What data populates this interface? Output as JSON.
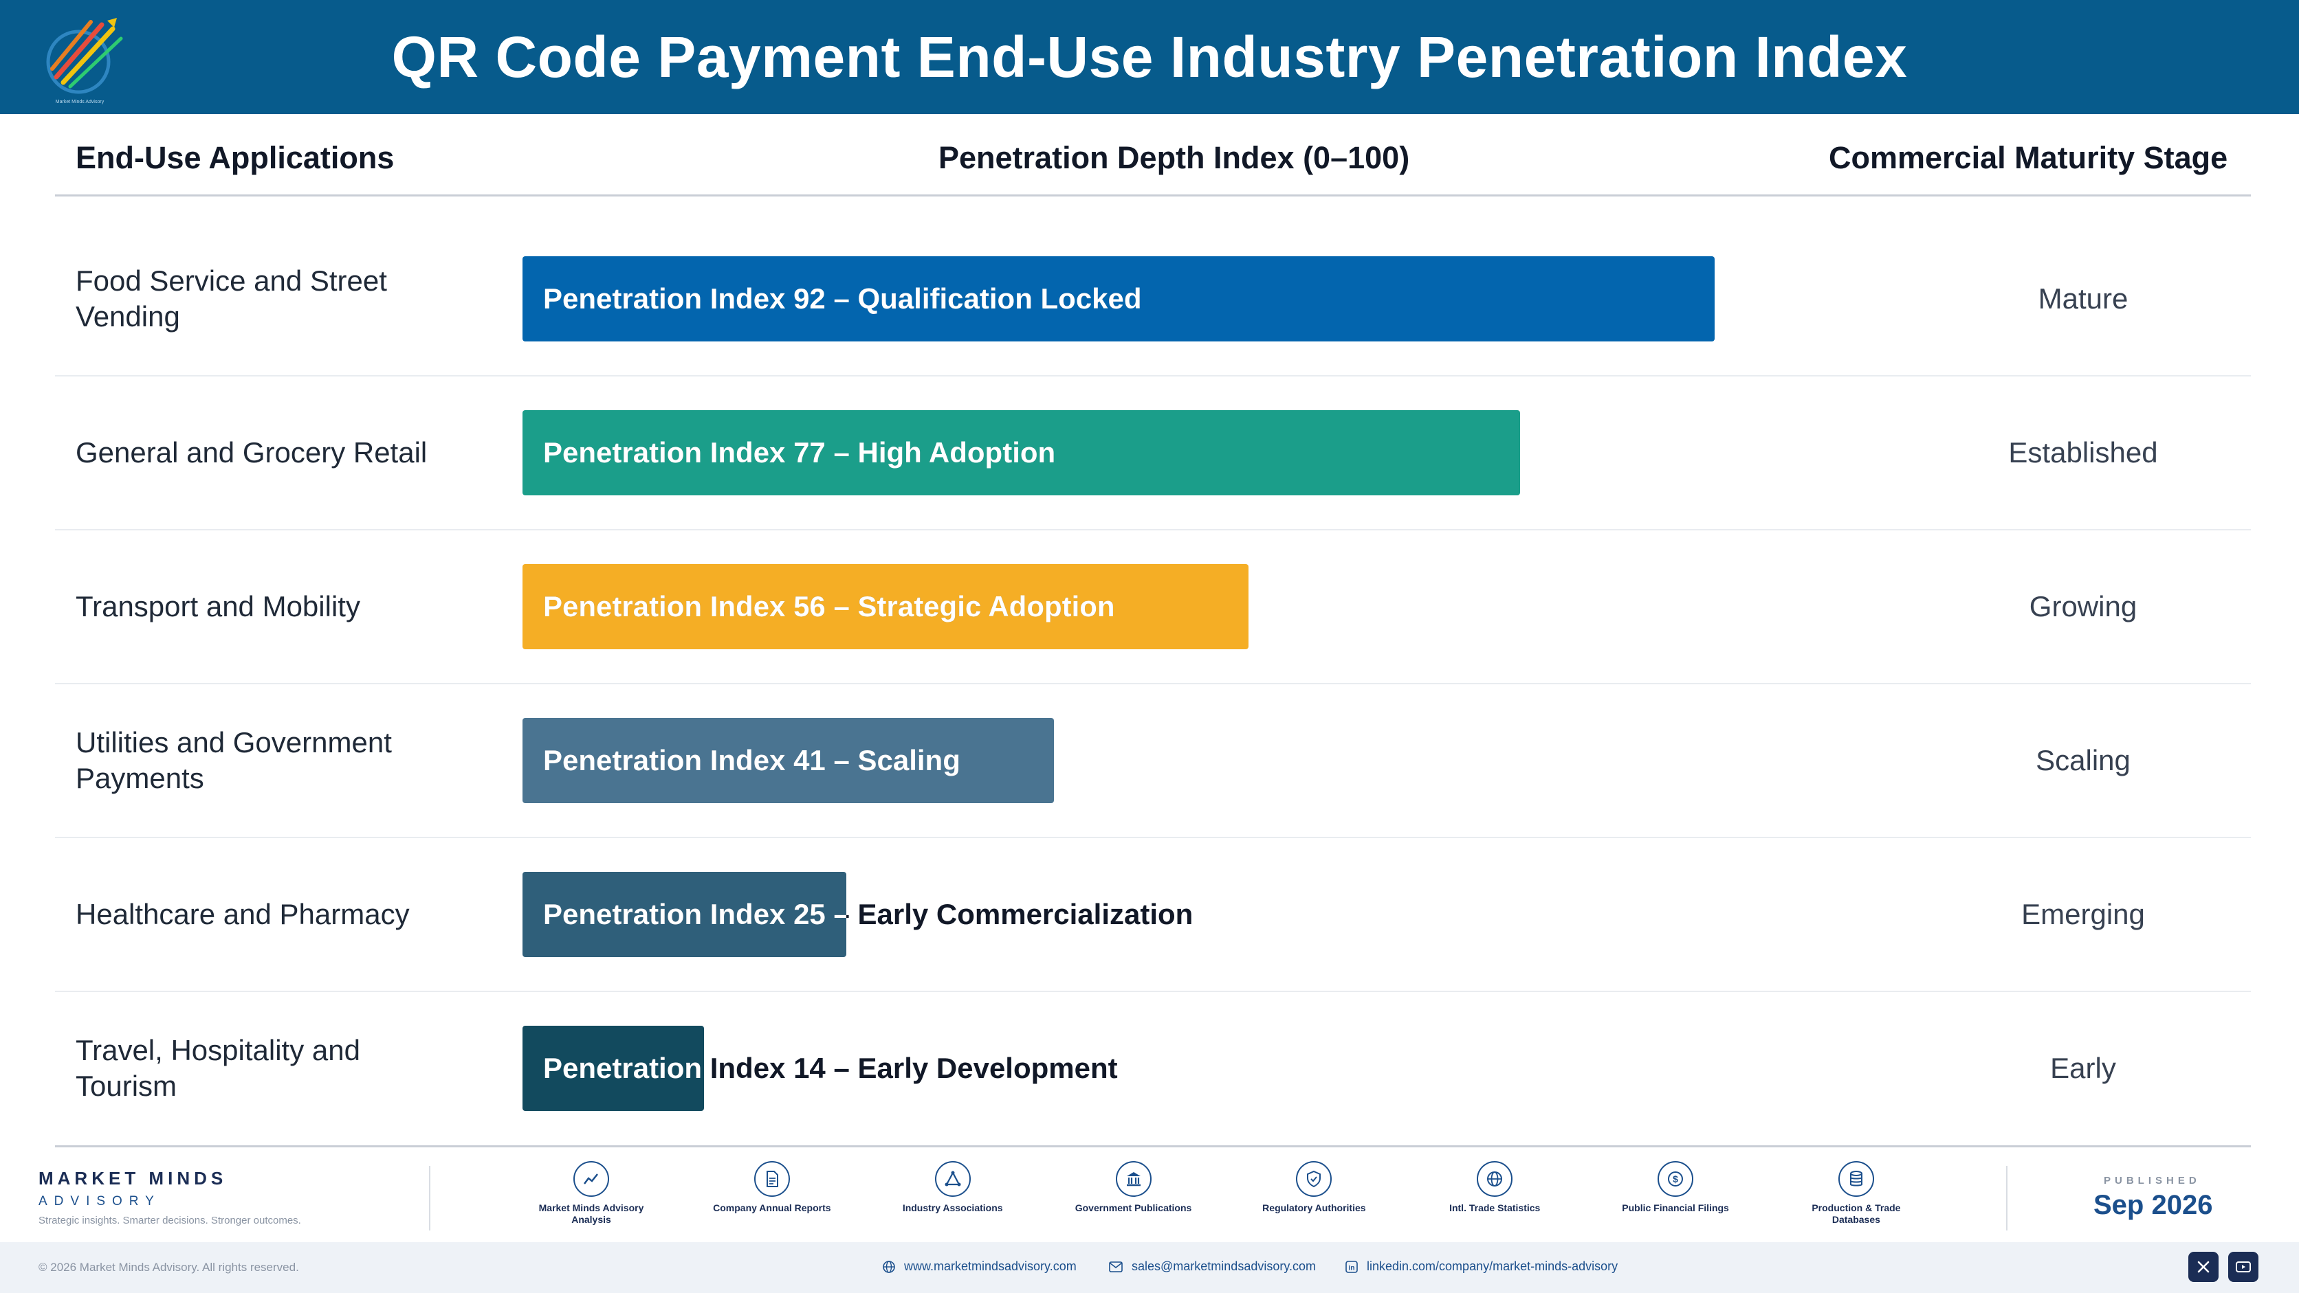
{
  "header": {
    "title": "QR Code Payment End-Use Industry Penetration Index"
  },
  "logo": {
    "caption": "Market Minds Advisory"
  },
  "table": {
    "col_app": "End-Use Applications",
    "col_depth": "Penetration Depth Index (0–100)",
    "col_stage": "Commercial Maturity Stage"
  },
  "chart_data": {
    "type": "bar",
    "orientation": "horizontal",
    "title": "QR Code Payment End-Use Industry Penetration Index",
    "xlabel": "Penetration Depth Index (0–100)",
    "xlim": [
      0,
      100
    ],
    "categories": [
      "Food Service and Street Vending",
      "General and Grocery Retail",
      "Transport and Mobility",
      "Utilities and Government Payments",
      "Healthcare and Pharmacy",
      "Travel, Hospitality and Tourism"
    ],
    "values": [
      92,
      77,
      56,
      41,
      25,
      14
    ],
    "bar_labels": [
      "Penetration Index 92 – Qualification Locked",
      "Penetration Index 77 – High Adoption",
      "Penetration Index 56 – Strategic Adoption",
      "Penetration Index 41 – Scaling",
      "Penetration Index 25 – Early Commercialization",
      "Penetration Index 14 – Early Development"
    ],
    "stages": [
      "Mature",
      "Established",
      "Growing",
      "Scaling",
      "Emerging",
      "Early"
    ],
    "colors": [
      "#0365ae",
      "#1b9e8a",
      "#f5ae25",
      "#4a7491",
      "#2f5f7a",
      "#124a5e"
    ],
    "grid": false,
    "legend": "none"
  },
  "footer": {
    "brand_name": "MARKET MINDS",
    "brand_sub": "ADVISORY",
    "brand_tag": "Strategic insights. Smarter decisions. Stronger outcomes.",
    "sources": [
      {
        "label": "Market Minds Advisory Analysis",
        "icon": "chart-line-icon"
      },
      {
        "label": "Company Annual Reports",
        "icon": "document-icon"
      },
      {
        "label": "Industry Associations",
        "icon": "network-icon"
      },
      {
        "label": "Government Publications",
        "icon": "government-building-icon"
      },
      {
        "label": "Regulatory Authorities",
        "icon": "shield-check-icon"
      },
      {
        "label": "Intl. Trade Statistics",
        "icon": "globe-icon"
      },
      {
        "label": "Public Financial Filings",
        "icon": "dollar-coin-icon"
      },
      {
        "label": "Production & Trade Databases",
        "icon": "database-icon"
      }
    ],
    "published_label": "PUBLISHED",
    "published_date": "Sep 2026",
    "copyright": "© 2026 Market Minds Advisory. All rights reserved.",
    "website": "www.marketmindsadvisory.com",
    "email": "sales@marketmindsadvisory.com",
    "linkedin": "linkedin.com/company/market-minds-advisory"
  }
}
